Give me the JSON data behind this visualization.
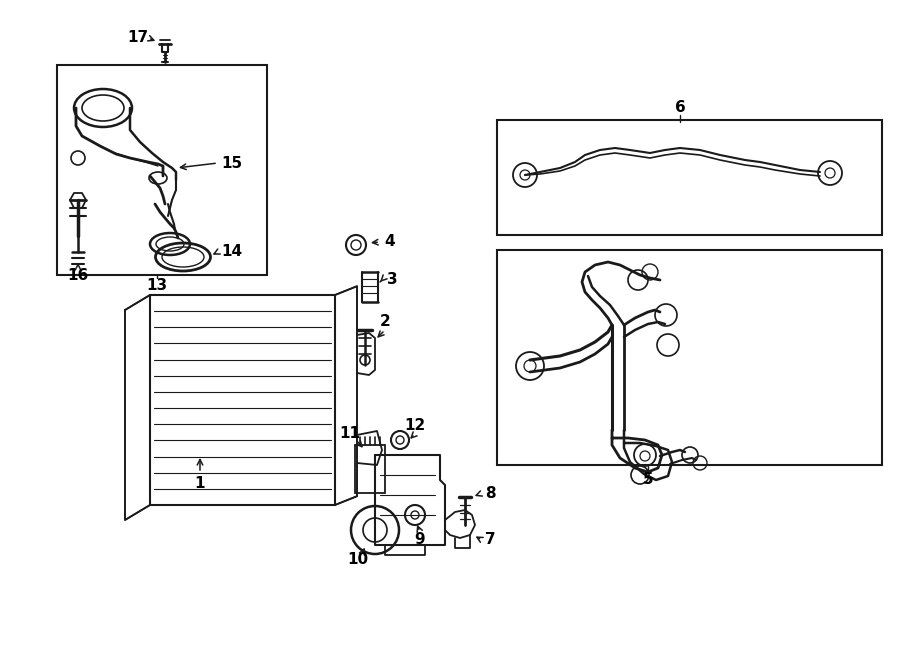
{
  "bg_color": "#ffffff",
  "line_color": "#1a1a1a",
  "fig_w": 9.0,
  "fig_h": 6.61,
  "dpi": 100
}
